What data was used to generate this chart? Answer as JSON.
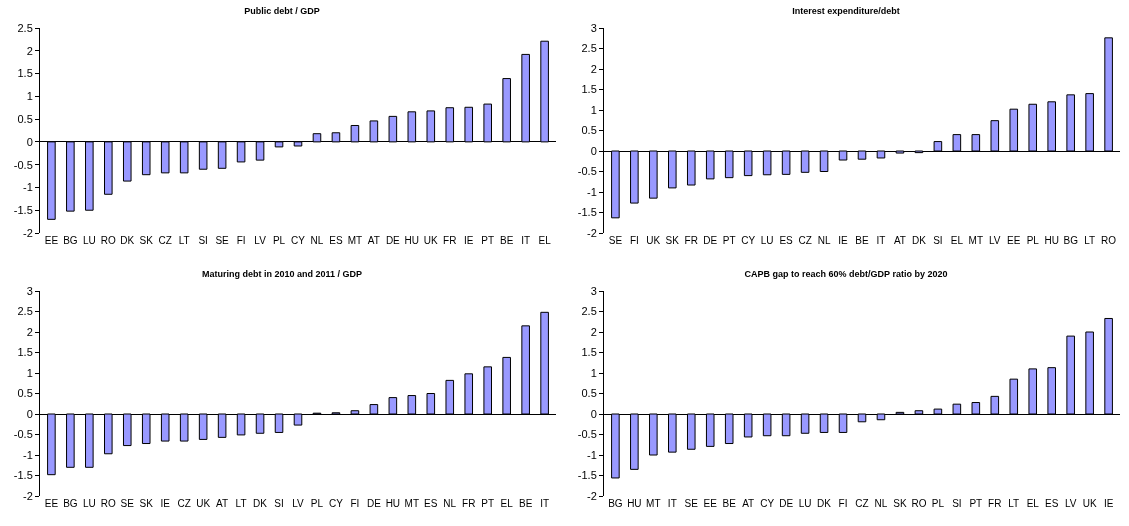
{
  "chart_data": [
    {
      "type": "bar",
      "title": "Public debt / GDP",
      "categories": [
        "EE",
        "BG",
        "LU",
        "RO",
        "DK",
        "SK",
        "CZ",
        "LT",
        "SI",
        "SE",
        "FI",
        "LV",
        "PL",
        "CY",
        "NL",
        "ES",
        "MT",
        "AT",
        "DE",
        "HU",
        "UK",
        "FR",
        "IE",
        "PT",
        "BE",
        "IT",
        "EL"
      ],
      "values": [
        -1.7,
        -1.52,
        -1.5,
        -1.15,
        -0.86,
        -0.72,
        -0.68,
        -0.68,
        -0.6,
        -0.58,
        -0.44,
        -0.4,
        -0.11,
        -0.09,
        0.18,
        0.2,
        0.36,
        0.46,
        0.56,
        0.66,
        0.68,
        0.75,
        0.76,
        0.83,
        1.39,
        1.92,
        2.21
      ],
      "color": "#9999ff",
      "ylim": [
        -2,
        2.5
      ],
      "yticks": [
        -2,
        -1.5,
        -1,
        -0.5,
        0,
        0.5,
        1,
        1.5,
        2,
        2.5
      ]
    },
    {
      "type": "bar",
      "title": "Interest expenditure/debt",
      "categories": [
        "SE",
        "FI",
        "UK",
        "SK",
        "FR",
        "DE",
        "PT",
        "CY",
        "LU",
        "ES",
        "CZ",
        "NL",
        "IE",
        "BE",
        "IT",
        "AT",
        "DK",
        "SI",
        "EL",
        "MT",
        "LV",
        "EE",
        "PL",
        "HU",
        "BG",
        "LT",
        "RO"
      ],
      "values": [
        -1.63,
        -1.27,
        -1.15,
        -0.9,
        -0.83,
        -0.68,
        -0.65,
        -0.6,
        -0.58,
        -0.57,
        -0.52,
        -0.5,
        -0.22,
        -0.2,
        -0.17,
        -0.05,
        -0.04,
        0.23,
        0.4,
        0.4,
        0.74,
        1.02,
        1.14,
        1.2,
        1.37,
        1.4,
        2.76
      ],
      "color": "#9999ff",
      "ylim": [
        -2,
        3
      ],
      "yticks": [
        -2,
        -1.5,
        -1,
        -0.5,
        0,
        0.5,
        1,
        1.5,
        2,
        2.5,
        3
      ]
    },
    {
      "type": "bar",
      "title": "Maturing debt in 2010 and 2011 / GDP",
      "categories": [
        "EE",
        "BG",
        "LU",
        "RO",
        "SE",
        "SK",
        "IE",
        "CZ",
        "UK",
        "AT",
        "LT",
        "DK",
        "SI",
        "LV",
        "PL",
        "CY",
        "FI",
        "DE",
        "HU",
        "MT",
        "ES",
        "NL",
        "FR",
        "PT",
        "EL",
        "BE",
        "IT"
      ],
      "values": [
        -1.48,
        -1.3,
        -1.3,
        -0.97,
        -0.77,
        -0.72,
        -0.66,
        -0.66,
        -0.62,
        -0.57,
        -0.51,
        -0.47,
        -0.45,
        -0.27,
        0.02,
        0.03,
        0.08,
        0.23,
        0.4,
        0.45,
        0.5,
        0.82,
        0.98,
        1.15,
        1.38,
        2.15,
        2.48
      ],
      "color": "#9999ff",
      "ylim": [
        -2,
        3
      ],
      "yticks": [
        -2,
        -1.5,
        -1,
        -0.5,
        0,
        0.5,
        1,
        1.5,
        2,
        2.5,
        3
      ]
    },
    {
      "type": "bar",
      "title": "CAPB gap to reach 60% debt/GDP ratio by 2020",
      "categories": [
        "BG",
        "HU",
        "MT",
        "IT",
        "SE",
        "EE",
        "BE",
        "AT",
        "CY",
        "DE",
        "LU",
        "DK",
        "FI",
        "CZ",
        "NL",
        "SK",
        "RO",
        "PL",
        "SI",
        "PT",
        "FR",
        "LT",
        "EL",
        "ES",
        "LV",
        "UK",
        "IE"
      ],
      "values": [
        -1.56,
        -1.35,
        -1.0,
        -0.93,
        -0.86,
        -0.79,
        -0.72,
        -0.56,
        -0.53,
        -0.53,
        -0.47,
        -0.45,
        -0.45,
        -0.19,
        -0.14,
        0.04,
        0.08,
        0.12,
        0.24,
        0.28,
        0.43,
        0.85,
        1.1,
        1.13,
        1.9,
        2.0,
        2.33
      ],
      "color": "#9999ff",
      "ylim": [
        -2,
        3
      ],
      "yticks": [
        -2,
        -1.5,
        -1,
        -0.5,
        0,
        0.5,
        1,
        1.5,
        2,
        2.5,
        3
      ]
    }
  ]
}
